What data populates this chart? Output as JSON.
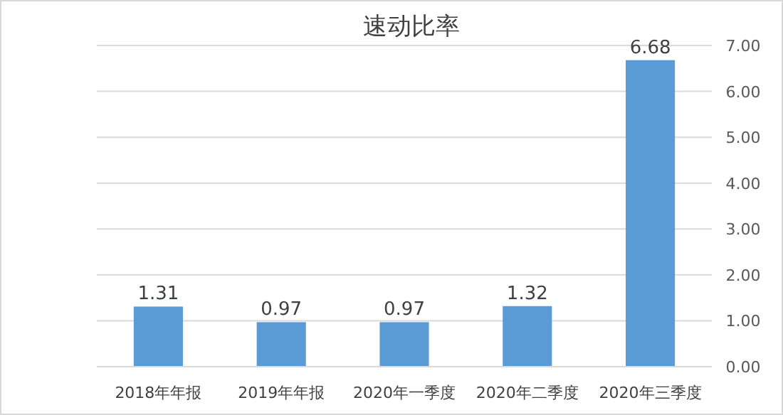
{
  "chart_data": {
    "type": "bar",
    "title": "速动比率",
    "categories": [
      "2018年年报",
      "2019年年报",
      "2020年一季度",
      "2020年二季度",
      "2020年三季度"
    ],
    "values": [
      1.31,
      0.97,
      0.97,
      1.32,
      6.68
    ],
    "color": "#5b9bd5",
    "ylim": [
      0,
      7
    ],
    "yticks": [
      {
        "value": 0,
        "label": "0.00"
      },
      {
        "value": 1,
        "label": "1.00"
      },
      {
        "value": 2,
        "label": "2.00"
      },
      {
        "value": 3,
        "label": "3.00"
      },
      {
        "value": 4,
        "label": "4.00"
      },
      {
        "value": 5,
        "label": "5.00"
      },
      {
        "value": 6,
        "label": "6.00"
      },
      {
        "value": 7,
        "label": "7.00"
      }
    ],
    "grid": "y",
    "data_labels": true
  }
}
